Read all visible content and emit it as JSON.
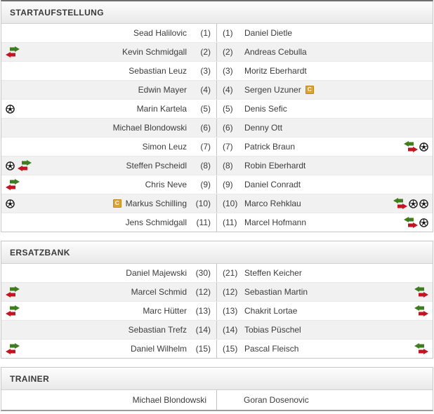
{
  "captain_label": "C",
  "colors": {
    "sub_green": "#3e7d1d",
    "sub_red": "#c41421",
    "captain_bg": "#e0a22e",
    "ball_dark": "#161616"
  },
  "sections": {
    "lineup": {
      "title": "STARTAUFSTELLUNG",
      "rows": [
        {
          "home": {
            "name": "Sead Halilovic",
            "num": "(1)",
            "icons": [],
            "captain": false
          },
          "away": {
            "name": "Daniel Dietle",
            "num": "(1)",
            "icons": [],
            "captain": false
          }
        },
        {
          "home": {
            "name": "Kevin Schmidgall",
            "num": "(2)",
            "icons": [
              "substitution"
            ],
            "captain": false
          },
          "away": {
            "name": "Andreas Cebulla",
            "num": "(2)",
            "icons": [],
            "captain": false
          }
        },
        {
          "home": {
            "name": "Sebastian Leuz",
            "num": "(3)",
            "icons": [],
            "captain": false
          },
          "away": {
            "name": "Moritz Eberhardt",
            "num": "(3)",
            "icons": [],
            "captain": false
          }
        },
        {
          "home": {
            "name": "Edwin Mayer",
            "num": "(4)",
            "icons": [],
            "captain": false
          },
          "away": {
            "name": "Sergen Uzuner",
            "num": "(4)",
            "icons": [],
            "captain": true
          }
        },
        {
          "home": {
            "name": "Marin Kartela",
            "num": "(5)",
            "icons": [
              "goal"
            ],
            "captain": false
          },
          "away": {
            "name": "Denis Sefic",
            "num": "(5)",
            "icons": [],
            "captain": false
          }
        },
        {
          "home": {
            "name": "Michael Blondowski",
            "num": "(6)",
            "icons": [],
            "captain": false
          },
          "away": {
            "name": "Denny Ott",
            "num": "(6)",
            "icons": [],
            "captain": false
          }
        },
        {
          "home": {
            "name": "Simon Leuz",
            "num": "(7)",
            "icons": [],
            "captain": false
          },
          "away": {
            "name": "Patrick Braun",
            "num": "(7)",
            "icons": [
              "substitution",
              "goal"
            ],
            "captain": false
          }
        },
        {
          "home": {
            "name": "Steffen Pscheidl",
            "num": "(8)",
            "icons": [
              "goal",
              "substitution"
            ],
            "captain": false
          },
          "away": {
            "name": "Robin Eberhardt",
            "num": "(8)",
            "icons": [],
            "captain": false
          }
        },
        {
          "home": {
            "name": "Chris Neve",
            "num": "(9)",
            "icons": [
              "substitution"
            ],
            "captain": false
          },
          "away": {
            "name": "Daniel Conradt",
            "num": "(9)",
            "icons": [],
            "captain": false
          }
        },
        {
          "home": {
            "name": "Markus Schilling",
            "num": "(10)",
            "icons": [
              "goal"
            ],
            "captain": true
          },
          "away": {
            "name": "Marco Rehklau",
            "num": "(10)",
            "icons": [
              "substitution",
              "goal",
              "goal"
            ],
            "captain": false
          }
        },
        {
          "home": {
            "name": "Jens Schmidgall",
            "num": "(11)",
            "icons": [],
            "captain": false
          },
          "away": {
            "name": "Marcel Hofmann",
            "num": "(11)",
            "icons": [
              "substitution",
              "goal"
            ],
            "captain": false
          }
        }
      ]
    },
    "bench": {
      "title": "ERSATZBANK",
      "rows": [
        {
          "home": {
            "name": "Daniel Majewski",
            "num": "(30)",
            "icons": [],
            "captain": false
          },
          "away": {
            "name": "Steffen Keicher",
            "num": "(21)",
            "icons": [],
            "captain": false
          }
        },
        {
          "home": {
            "name": "Marcel Schmid",
            "num": "(12)",
            "icons": [
              "substitution"
            ],
            "captain": false
          },
          "away": {
            "name": "Sebastian Martin",
            "num": "(12)",
            "icons": [
              "substitution"
            ],
            "captain": false
          }
        },
        {
          "home": {
            "name": "Marc Hütter",
            "num": "(13)",
            "icons": [
              "substitution"
            ],
            "captain": false
          },
          "away": {
            "name": "Chakrit Lortae",
            "num": "(13)",
            "icons": [
              "substitution"
            ],
            "captain": false
          }
        },
        {
          "home": {
            "name": "Sebastian Trefz",
            "num": "(14)",
            "icons": [],
            "captain": false
          },
          "away": {
            "name": "Tobias Püschel",
            "num": "(14)",
            "icons": [],
            "captain": false
          }
        },
        {
          "home": {
            "name": "Daniel Wilhelm",
            "num": "(15)",
            "icons": [
              "substitution"
            ],
            "captain": false
          },
          "away": {
            "name": "Pascal Fleisch",
            "num": "(15)",
            "icons": [
              "substitution"
            ],
            "captain": false
          }
        }
      ]
    },
    "trainer": {
      "title": "TRAINER",
      "home": "Michael Blondowski",
      "away": "Goran Dosenovic"
    }
  }
}
